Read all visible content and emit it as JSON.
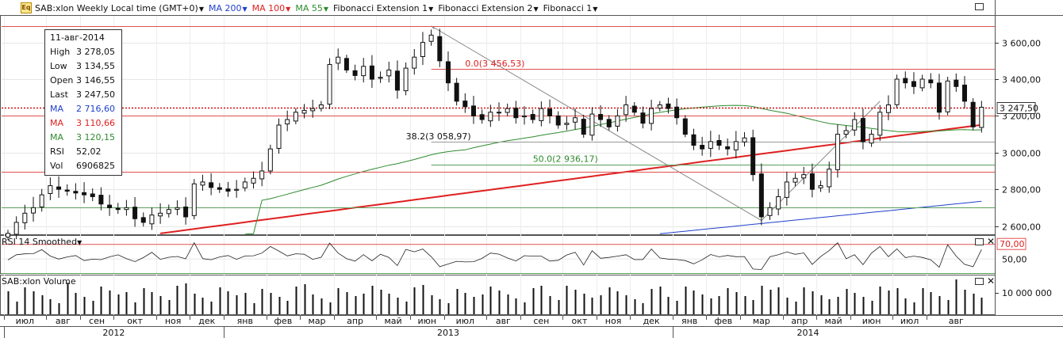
{
  "header": {
    "icon_text": "Eq",
    "symbol_title": "SAB:xlon Weekly Local time (GMT+0)",
    "indicators": [
      {
        "label": "MA 200",
        "color": "#1f3fcc"
      },
      {
        "label": "MA 100",
        "color": "#e02020"
      },
      {
        "label": "MA 55",
        "color": "#2e8b2e"
      },
      {
        "label": "Fibonacci Extension 1",
        "color": "#111111"
      },
      {
        "label": "Fibonacci Extension 2",
        "color": "#111111"
      },
      {
        "label": "Fibonacci 1",
        "color": "#111111"
      }
    ]
  },
  "info_box": {
    "date": "11-авг-2014",
    "rows": [
      {
        "label": "High",
        "value": "3 278,05",
        "color": "#111111"
      },
      {
        "label": "Low",
        "value": "3 134,55",
        "color": "#111111"
      },
      {
        "label": "Open",
        "value": "3 146,55",
        "color": "#111111"
      },
      {
        "label": "Last",
        "value": "3 247,50",
        "color": "#111111"
      },
      {
        "label": "MA",
        "value": "2 716,60",
        "color": "#1f3fcc"
      },
      {
        "label": "MA",
        "value": "3 110,66",
        "color": "#e02020"
      },
      {
        "label": "MA",
        "value": "3 120,15",
        "color": "#2e8b2e"
      },
      {
        "label": "RSI",
        "value": "52,02",
        "color": "#111111"
      },
      {
        "label": "Vol",
        "value": "6906825",
        "color": "#111111"
      }
    ]
  },
  "annotations": {
    "fib_0": "0.0(3 456,53)",
    "fib_382": "38.2(3 058,97)",
    "fib_50": "50.0(2 936,17)",
    "last_price": "3 247,50"
  },
  "rsi_panel": {
    "title": "RSI 14 Smoothed",
    "level_label": "70,00",
    "tick_label": "50,00"
  },
  "volume_panel": {
    "title": "SAB:xlon Volume",
    "tick_label": "10 000 000"
  },
  "chart_data": {
    "type": "candlestick",
    "interval": "weekly",
    "y_ticks": [
      2600,
      2800,
      3000,
      3200,
      3400,
      3600
    ],
    "y_tick_labels": [
      "2 600,00",
      "2 800,00",
      "3 000,00",
      "3 200,00",
      "3 400,00",
      "3 600,00"
    ],
    "ylim": [
      2555,
      3745
    ],
    "grid": true,
    "months": [
      {
        "label": "июл",
        "start": 0
      },
      {
        "label": "авг",
        "start": 5
      },
      {
        "label": "сен",
        "start": 9
      },
      {
        "label": "окт",
        "start": 13
      },
      {
        "label": "ноя",
        "start": 18
      },
      {
        "label": "дек",
        "start": 22
      },
      {
        "label": "янв",
        "start": 26
      },
      {
        "label": "фев",
        "start": 31
      },
      {
        "label": "мар",
        "start": 35
      },
      {
        "label": "апр",
        "start": 39
      },
      {
        "label": "май",
        "start": 44
      },
      {
        "label": "июн",
        "start": 48
      },
      {
        "label": "июл",
        "start": 52
      },
      {
        "label": "авг",
        "start": 57
      },
      {
        "label": "сен",
        "start": 61
      },
      {
        "label": "окт",
        "start": 66
      },
      {
        "label": "ноя",
        "start": 70
      },
      {
        "label": "дек",
        "start": 74
      },
      {
        "label": "янв",
        "start": 79
      },
      {
        "label": "фев",
        "start": 83
      },
      {
        "label": "мар",
        "start": 87
      },
      {
        "label": "апр",
        "start": 92
      },
      {
        "label": "май",
        "start": 96
      },
      {
        "label": "июн",
        "start": 100
      },
      {
        "label": "июл",
        "start": 105
      },
      {
        "label": "авг",
        "start": 109
      }
    ],
    "years": [
      {
        "label": "2012",
        "start": 0,
        "end": 26
      },
      {
        "label": "2013",
        "start": 26,
        "end": 79
      },
      {
        "label": "2014",
        "start": 79,
        "end": 111
      }
    ],
    "close": [
      2560,
      2620,
      2670,
      2700,
      2770,
      2820,
      2800,
      2790,
      2780,
      2770,
      2760,
      2720,
      2700,
      2690,
      2700,
      2640,
      2620,
      2660,
      2670,
      2690,
      2700,
      2650,
      2830,
      2840,
      2810,
      2800,
      2790,
      2800,
      2840,
      2860,
      2900,
      3020,
      3150,
      3180,
      3220,
      3230,
      3240,
      3260,
      3480,
      3520,
      3450,
      3420,
      3470,
      3400,
      3410,
      3450,
      3340,
      3460,
      3520,
      3600,
      3640,
      3500,
      3380,
      3280,
      3250,
      3200,
      3180,
      3220,
      3220,
      3240,
      3190,
      3200,
      3180,
      3240,
      3200,
      3150,
      3160,
      3190,
      3100,
      3210,
      3180,
      3140,
      3200,
      3260,
      3220,
      3160,
      3240,
      3260,
      3240,
      3190,
      3100,
      3040,
      3020,
      3060,
      3040,
      3020,
      3060,
      3080,
      2880,
      2650,
      2700,
      2760,
      2840,
      2860,
      2880,
      2800,
      2820,
      2910,
      3100,
      3120,
      3180,
      3060,
      3100,
      3220,
      3260,
      3400,
      3380,
      3360,
      3400,
      3380,
      3220,
      3390,
      3360,
      3280,
      3140,
      3247
    ]
  }
}
